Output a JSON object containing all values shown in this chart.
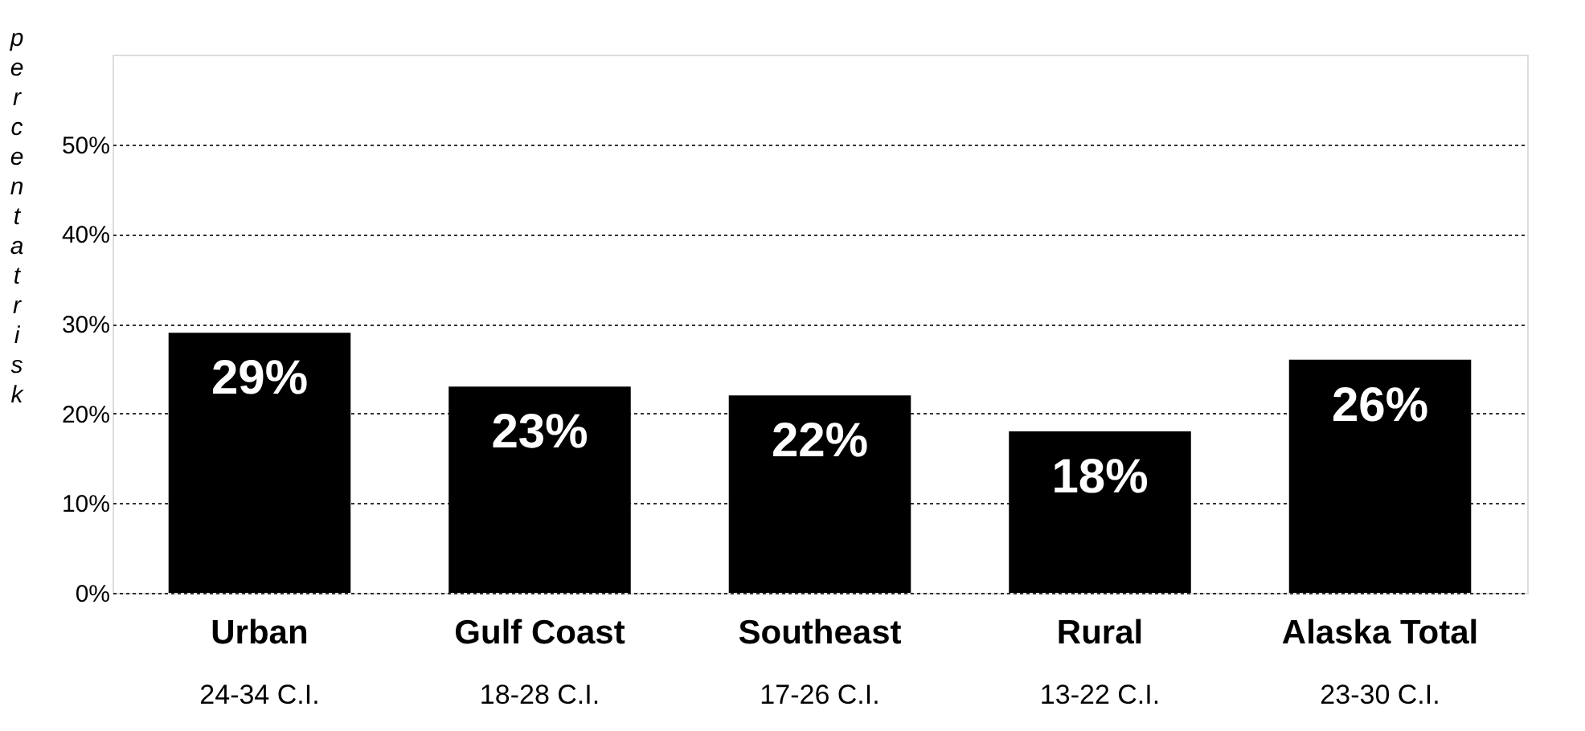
{
  "chart_data": {
    "type": "bar",
    "ylabel": "percent at risk",
    "categories": [
      "Urban",
      "Gulf Coast",
      "Southeast",
      "Rural",
      "Alaska Total"
    ],
    "values": [
      29,
      23,
      22,
      18,
      26
    ],
    "color": "#000000",
    "value_labels": [
      "29%",
      "23%",
      "22%",
      "18%",
      "26%"
    ],
    "ylim": [
      0,
      60
    ],
    "yticks": [
      {
        "value": 0,
        "label": "0%"
      },
      {
        "value": 10,
        "label": "10%"
      },
      {
        "value": 20,
        "label": "20%"
      },
      {
        "value": 30,
        "label": "30%"
      },
      {
        "value": 40,
        "label": "40%"
      },
      {
        "value": 50,
        "label": "50%"
      }
    ],
    "grid": "y",
    "annotations": [
      "24-34 C.I.",
      "18-28 C.I.",
      "17-26 C.I.",
      "13-22 C.I.",
      "23-30 C.I."
    ]
  }
}
